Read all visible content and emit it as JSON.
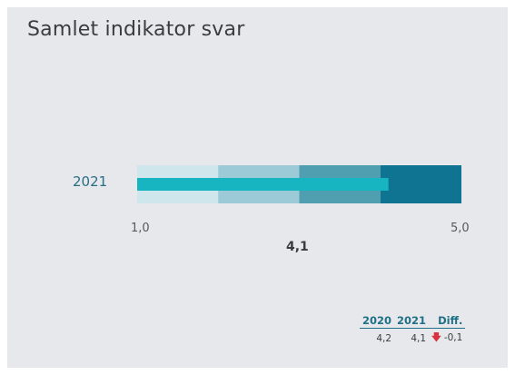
{
  "title": "Samlet indikator svar",
  "chart_data": {
    "type": "bullet",
    "title": "Samlet indikator svar",
    "category": "2021",
    "scale_min": 1.0,
    "scale_max": 5.0,
    "scale_min_label": "1,0",
    "scale_max_label": "5,0",
    "bands": [
      {
        "from": 1.0,
        "to": 2.0,
        "color": "#cfe6ec"
      },
      {
        "from": 2.0,
        "to": 3.0,
        "color": "#9ccad6"
      },
      {
        "from": 3.0,
        "to": 4.0,
        "color": "#4f9fb1"
      },
      {
        "from": 4.0,
        "to": 5.0,
        "color": "#0e7491"
      }
    ],
    "value": 4.1,
    "value_label": "4,1",
    "bar_color": "#17b4c2"
  },
  "summary": {
    "headers": [
      "2020",
      "2021",
      "Diff."
    ],
    "values": [
      "4,2",
      "4,1",
      "-0,1"
    ],
    "trend": "down",
    "trend_color": "#d9343d"
  }
}
